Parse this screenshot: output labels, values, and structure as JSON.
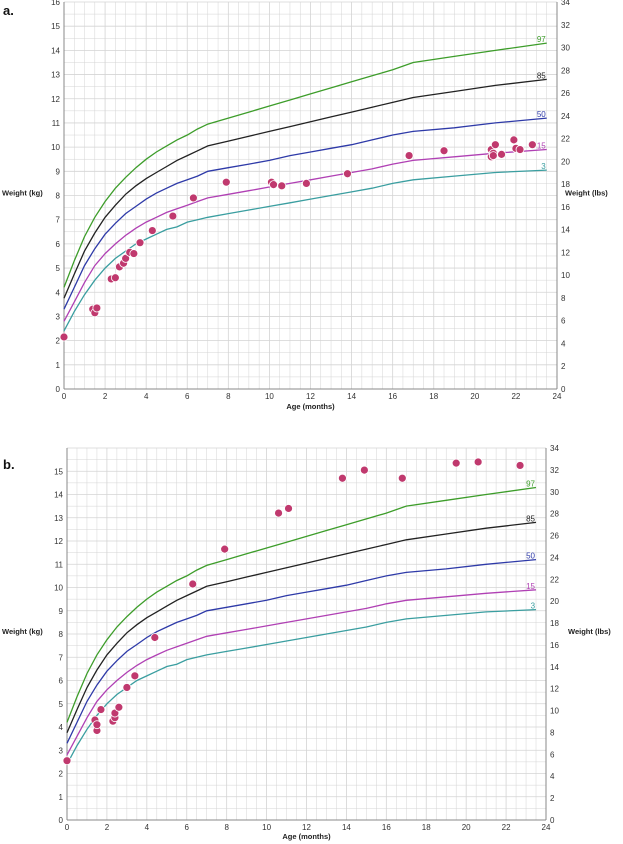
{
  "chart_data": [
    {
      "type": "scatter",
      "panel_label": "a.",
      "xlabel": "Age (months)",
      "ylabel": "Weight (kg)",
      "y2label": "Weight (lbs)",
      "xlim": [
        0,
        24
      ],
      "ylim": [
        0,
        16
      ],
      "y2lim": [
        0,
        34
      ],
      "x_ticks": [
        0,
        2,
        4,
        6,
        8,
        10,
        12,
        14,
        16,
        18,
        20,
        22,
        24
      ],
      "y_ticks": [
        0,
        1,
        2,
        3,
        4,
        5,
        6,
        7,
        8,
        9,
        10,
        11,
        12,
        13,
        14,
        15,
        16
      ],
      "y2_ticks": [
        0,
        2,
        4,
        6,
        8,
        10,
        12,
        14,
        16,
        18,
        20,
        22,
        24,
        26,
        28,
        30,
        32,
        34
      ],
      "grid": true,
      "percentile_curves": [
        {
          "name": "3",
          "color": "#3a9ea0",
          "y": [
            2.4,
            3.2,
            3.9,
            4.5,
            5.0,
            5.4,
            5.7,
            6.0,
            6.2,
            6.4,
            6.6,
            6.7,
            6.9,
            7.0,
            7.1,
            7.25,
            7.4,
            7.55,
            7.7,
            7.85,
            8.0,
            8.15,
            8.3,
            8.5,
            8.65,
            8.8,
            8.95,
            9.05
          ]
        },
        {
          "name": "15",
          "color": "#b040b4",
          "y": [
            2.8,
            3.6,
            4.4,
            5.1,
            5.6,
            6.0,
            6.35,
            6.65,
            6.9,
            7.1,
            7.3,
            7.45,
            7.6,
            7.75,
            7.9,
            8.05,
            8.2,
            8.35,
            8.5,
            8.65,
            8.8,
            8.95,
            9.1,
            9.3,
            9.45,
            9.6,
            9.75,
            9.9
          ]
        },
        {
          "name": "50",
          "color": "#2e3aa8",
          "y": [
            3.3,
            4.2,
            5.1,
            5.8,
            6.4,
            6.85,
            7.25,
            7.55,
            7.85,
            8.1,
            8.3,
            8.5,
            8.65,
            8.8,
            9.0,
            9.15,
            9.3,
            9.45,
            9.65,
            9.8,
            9.95,
            10.1,
            10.3,
            10.5,
            10.65,
            10.8,
            11.0,
            11.2
          ]
        },
        {
          "name": "85",
          "color": "#222222",
          "y": [
            3.75,
            4.75,
            5.7,
            6.45,
            7.1,
            7.6,
            8.05,
            8.4,
            8.7,
            8.95,
            9.2,
            9.45,
            9.65,
            9.85,
            10.05,
            10.25,
            10.45,
            10.65,
            10.85,
            11.05,
            11.25,
            11.45,
            11.65,
            11.85,
            12.05,
            12.3,
            12.55,
            12.8
          ]
        },
        {
          "name": "97",
          "color": "#3d9d2a",
          "y": [
            4.2,
            5.3,
            6.3,
            7.1,
            7.75,
            8.3,
            8.75,
            9.15,
            9.5,
            9.8,
            10.05,
            10.3,
            10.5,
            10.75,
            10.95,
            11.2,
            11.45,
            11.7,
            11.95,
            12.2,
            12.45,
            12.7,
            12.95,
            13.2,
            13.5,
            13.75,
            14.0,
            14.3
          ]
        }
      ],
      "curve_x": [
        0,
        0.5,
        1,
        1.5,
        2,
        2.5,
        3,
        3.5,
        4,
        4.5,
        5,
        5.5,
        6,
        6.5,
        7,
        8,
        9,
        10,
        11,
        12,
        13,
        14,
        15,
        16,
        17,
        19,
        21,
        23.5
      ],
      "points": {
        "color": "#c0396e",
        "x": [
          0,
          1.4,
          1.5,
          1.6,
          2.3,
          2.5,
          2.7,
          2.9,
          3.0,
          3.2,
          3.4,
          3.7,
          4.3,
          5.3,
          6.3,
          7.9,
          10.1,
          10.2,
          10.6,
          11.8,
          13.8,
          16.8,
          18.5,
          20.8,
          20.9,
          21.0,
          20.8,
          20.9,
          21.3,
          21.9,
          22.0,
          22.2,
          22.8
        ],
        "y": [
          2.15,
          3.3,
          3.15,
          3.35,
          4.55,
          4.6,
          5.05,
          5.2,
          5.4,
          5.65,
          5.6,
          6.05,
          6.55,
          7.15,
          7.9,
          8.55,
          8.55,
          8.45,
          8.4,
          8.5,
          8.9,
          9.65,
          9.85,
          9.9,
          9.75,
          10.1,
          9.6,
          9.65,
          9.7,
          10.3,
          9.95,
          9.9,
          10.1
        ]
      }
    },
    {
      "type": "scatter",
      "panel_label": "b.",
      "xlabel": "Age (months)",
      "ylabel": "Weight (kg)",
      "y2label": "Weight (lbs)",
      "xlim": [
        0,
        24
      ],
      "ylim": [
        0,
        16
      ],
      "y2lim": [
        0,
        34
      ],
      "x_ticks": [
        0,
        2,
        4,
        6,
        8,
        10,
        12,
        14,
        16,
        18,
        20,
        22,
        24
      ],
      "y_ticks": [
        0,
        1,
        2,
        3,
        4,
        5,
        6,
        7,
        8,
        9,
        10,
        11,
        12,
        13,
        14,
        15
      ],
      "y2_ticks": [
        0,
        2,
        4,
        6,
        8,
        10,
        12,
        14,
        16,
        18,
        20,
        22,
        24,
        26,
        28,
        30,
        32,
        34
      ],
      "grid": true,
      "percentile_curves": [
        {
          "name": "3",
          "color": "#3a9ea0",
          "y": [
            2.4,
            3.2,
            3.9,
            4.5,
            5.0,
            5.4,
            5.7,
            6.0,
            6.2,
            6.4,
            6.6,
            6.7,
            6.9,
            7.0,
            7.1,
            7.25,
            7.4,
            7.55,
            7.7,
            7.85,
            8.0,
            8.15,
            8.3,
            8.5,
            8.65,
            8.8,
            8.95,
            9.05
          ]
        },
        {
          "name": "15",
          "color": "#b040b4",
          "y": [
            2.8,
            3.6,
            4.4,
            5.1,
            5.6,
            6.0,
            6.35,
            6.65,
            6.9,
            7.1,
            7.3,
            7.45,
            7.6,
            7.75,
            7.9,
            8.05,
            8.2,
            8.35,
            8.5,
            8.65,
            8.8,
            8.95,
            9.1,
            9.3,
            9.45,
            9.6,
            9.75,
            9.9
          ]
        },
        {
          "name": "50",
          "color": "#2e3aa8",
          "y": [
            3.3,
            4.2,
            5.1,
            5.8,
            6.4,
            6.85,
            7.25,
            7.55,
            7.85,
            8.1,
            8.3,
            8.5,
            8.65,
            8.8,
            9.0,
            9.15,
            9.3,
            9.45,
            9.65,
            9.8,
            9.95,
            10.1,
            10.3,
            10.5,
            10.65,
            10.8,
            11.0,
            11.2
          ]
        },
        {
          "name": "85",
          "color": "#222222",
          "y": [
            3.75,
            4.75,
            5.7,
            6.45,
            7.1,
            7.6,
            8.05,
            8.4,
            8.7,
            8.95,
            9.2,
            9.45,
            9.65,
            9.85,
            10.05,
            10.25,
            10.45,
            10.65,
            10.85,
            11.05,
            11.25,
            11.45,
            11.65,
            11.85,
            12.05,
            12.3,
            12.55,
            12.8
          ]
        },
        {
          "name": "97",
          "color": "#3d9d2a",
          "y": [
            4.2,
            5.3,
            6.3,
            7.1,
            7.75,
            8.3,
            8.75,
            9.15,
            9.5,
            9.8,
            10.05,
            10.3,
            10.5,
            10.75,
            10.95,
            11.2,
            11.45,
            11.7,
            11.95,
            12.2,
            12.45,
            12.7,
            12.95,
            13.2,
            13.5,
            13.75,
            14.0,
            14.3
          ]
        }
      ],
      "curve_x": [
        0,
        0.5,
        1,
        1.5,
        2,
        2.5,
        3,
        3.5,
        4,
        4.5,
        5,
        5.5,
        6,
        6.5,
        7,
        8,
        9,
        10,
        11,
        12,
        13,
        14,
        15,
        16,
        17,
        19,
        21,
        23.5
      ],
      "points": {
        "color": "#c0396e",
        "x": [
          0,
          1.4,
          1.5,
          1.5,
          1.7,
          2.3,
          2.4,
          2.4,
          2.6,
          3.0,
          3.4,
          4.4,
          6.3,
          7.9,
          10.6,
          11.1,
          13.8,
          14.9,
          16.8,
          19.5,
          20.6,
          22.7
        ],
        "y": [
          2.55,
          4.3,
          3.85,
          4.1,
          4.75,
          4.25,
          4.4,
          4.6,
          4.85,
          5.7,
          6.2,
          7.85,
          10.15,
          11.65,
          13.2,
          13.4,
          14.7,
          15.05,
          14.7,
          15.35,
          15.4,
          15.25
        ]
      }
    }
  ]
}
